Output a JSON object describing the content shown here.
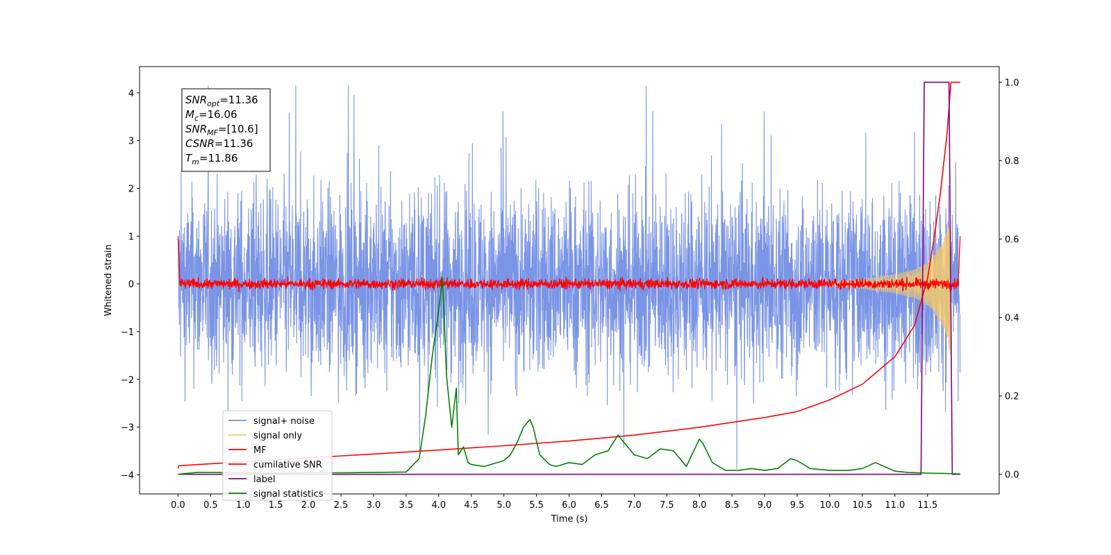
{
  "chart_data": {
    "type": "line",
    "xlabel": "Time (s)",
    "ylabel_left": "Whitened strain",
    "xlim": [
      -0.59,
      12.6
    ],
    "ylim_left": [
      -4.4,
      4.55
    ],
    "ylim_right": [
      -0.05,
      1.04
    ],
    "x_ticks": [
      "0.0",
      "0.5",
      "1.0",
      "1.5",
      "2.0",
      "2.5",
      "3.0",
      "3.5",
      "4.0",
      "4.5",
      "5.0",
      "5.5",
      "6.0",
      "6.5",
      "7.0",
      "7.5",
      "8.0",
      "8.5",
      "9.0",
      "9.5",
      "10.0",
      "10.5",
      "11.0",
      "11.5"
    ],
    "y_ticks_left": [
      "4",
      "3",
      "2",
      "1",
      "0",
      "−1",
      "−2",
      "−3",
      "−4"
    ],
    "y_ticks_right": [
      "1.0",
      "0.8",
      "0.6",
      "0.4",
      "0.2",
      "0.0"
    ],
    "grid": false,
    "legend_position": "lower-left",
    "annotation": {
      "lines": [
        {
          "sym": "SNR",
          "sub": "opt",
          "val": "=11.36"
        },
        {
          "sym": "M",
          "sub": "c",
          "val": "=16.06"
        },
        {
          "sym": "SNR",
          "sub": "MF",
          "val": "=[10.6]"
        },
        {
          "sym": "CSNR",
          "sub": "",
          "val": "=11.36"
        },
        {
          "sym": "T",
          "sub": "m",
          "val": "=11.86"
        }
      ]
    },
    "series": [
      {
        "name": "signal+ noise",
        "color": "#6f8be4",
        "axis": "left",
        "kind": "noise",
        "amplitude": 2.6,
        "x_range": [
          0.0,
          12.0
        ]
      },
      {
        "name": "signal only",
        "color": "#f4c96b",
        "axis": "left",
        "kind": "chirp",
        "x": [
          10.0,
          10.5,
          11.0,
          11.3,
          11.5,
          11.6,
          11.7,
          11.8,
          11.86
        ],
        "values": [
          0.05,
          0.1,
          0.2,
          0.3,
          0.45,
          0.6,
          0.8,
          1.1,
          1.6
        ]
      },
      {
        "name": "MF",
        "color": "#ff0000",
        "axis": "left",
        "kind": "mf",
        "amplitude": 0.15,
        "x_range": [
          0.0,
          12.0
        ],
        "start_value": 1.0,
        "end_value": 1.0
      },
      {
        "name": "cumilative SNR",
        "color": "#ff0000",
        "axis": "right",
        "x": [
          0.0,
          0.01,
          1.0,
          2.0,
          3.0,
          4.0,
          5.0,
          6.0,
          7.0,
          8.0,
          9.0,
          9.5,
          10.0,
          10.5,
          11.0,
          11.3,
          11.5,
          11.6,
          11.7,
          11.8,
          11.86,
          11.9,
          12.0
        ],
        "values": [
          0.015,
          0.022,
          0.032,
          0.042,
          0.052,
          0.062,
          0.073,
          0.085,
          0.1,
          0.12,
          0.145,
          0.16,
          0.19,
          0.23,
          0.3,
          0.38,
          0.5,
          0.6,
          0.72,
          0.87,
          1.0,
          1.0,
          1.0
        ]
      },
      {
        "name": "label",
        "color": "#800080",
        "axis": "right",
        "x": [
          0.0,
          11.4,
          11.45,
          11.83,
          11.88,
          12.0
        ],
        "values": [
          0.0,
          0.0,
          1.0,
          1.0,
          0.0,
          0.0
        ]
      },
      {
        "name": "signal statistics",
        "color": "#008000",
        "axis": "right",
        "x": [
          0.0,
          0.3,
          0.5,
          1.0,
          1.5,
          2.0,
          2.5,
          3.0,
          3.5,
          3.7,
          3.8,
          3.9,
          4.0,
          4.06,
          4.12,
          4.2,
          4.27,
          4.3,
          4.38,
          4.45,
          4.5,
          4.7,
          5.0,
          5.1,
          5.2,
          5.3,
          5.4,
          5.45,
          5.55,
          5.7,
          5.8,
          6.0,
          6.2,
          6.4,
          6.6,
          6.75,
          6.9,
          7.0,
          7.2,
          7.4,
          7.6,
          7.8,
          8.0,
          8.05,
          8.2,
          8.4,
          8.6,
          8.8,
          9.0,
          9.2,
          9.4,
          9.5,
          9.7,
          10.0,
          10.3,
          10.5,
          10.7,
          11.0,
          11.2,
          11.5,
          11.8,
          12.0
        ],
        "values": [
          0.0,
          0.005,
          0.005,
          0.004,
          0.003,
          0.004,
          0.004,
          0.005,
          0.006,
          0.04,
          0.15,
          0.3,
          0.42,
          0.5,
          0.25,
          0.12,
          0.22,
          0.05,
          0.07,
          0.03,
          0.025,
          0.02,
          0.035,
          0.05,
          0.08,
          0.12,
          0.14,
          0.12,
          0.05,
          0.025,
          0.02,
          0.03,
          0.025,
          0.05,
          0.06,
          0.1,
          0.07,
          0.05,
          0.04,
          0.065,
          0.06,
          0.02,
          0.09,
          0.08,
          0.03,
          0.01,
          0.01,
          0.015,
          0.01,
          0.015,
          0.04,
          0.035,
          0.015,
          0.01,
          0.01,
          0.015,
          0.03,
          0.008,
          0.005,
          0.003,
          0.002,
          0.001
        ]
      }
    ]
  }
}
